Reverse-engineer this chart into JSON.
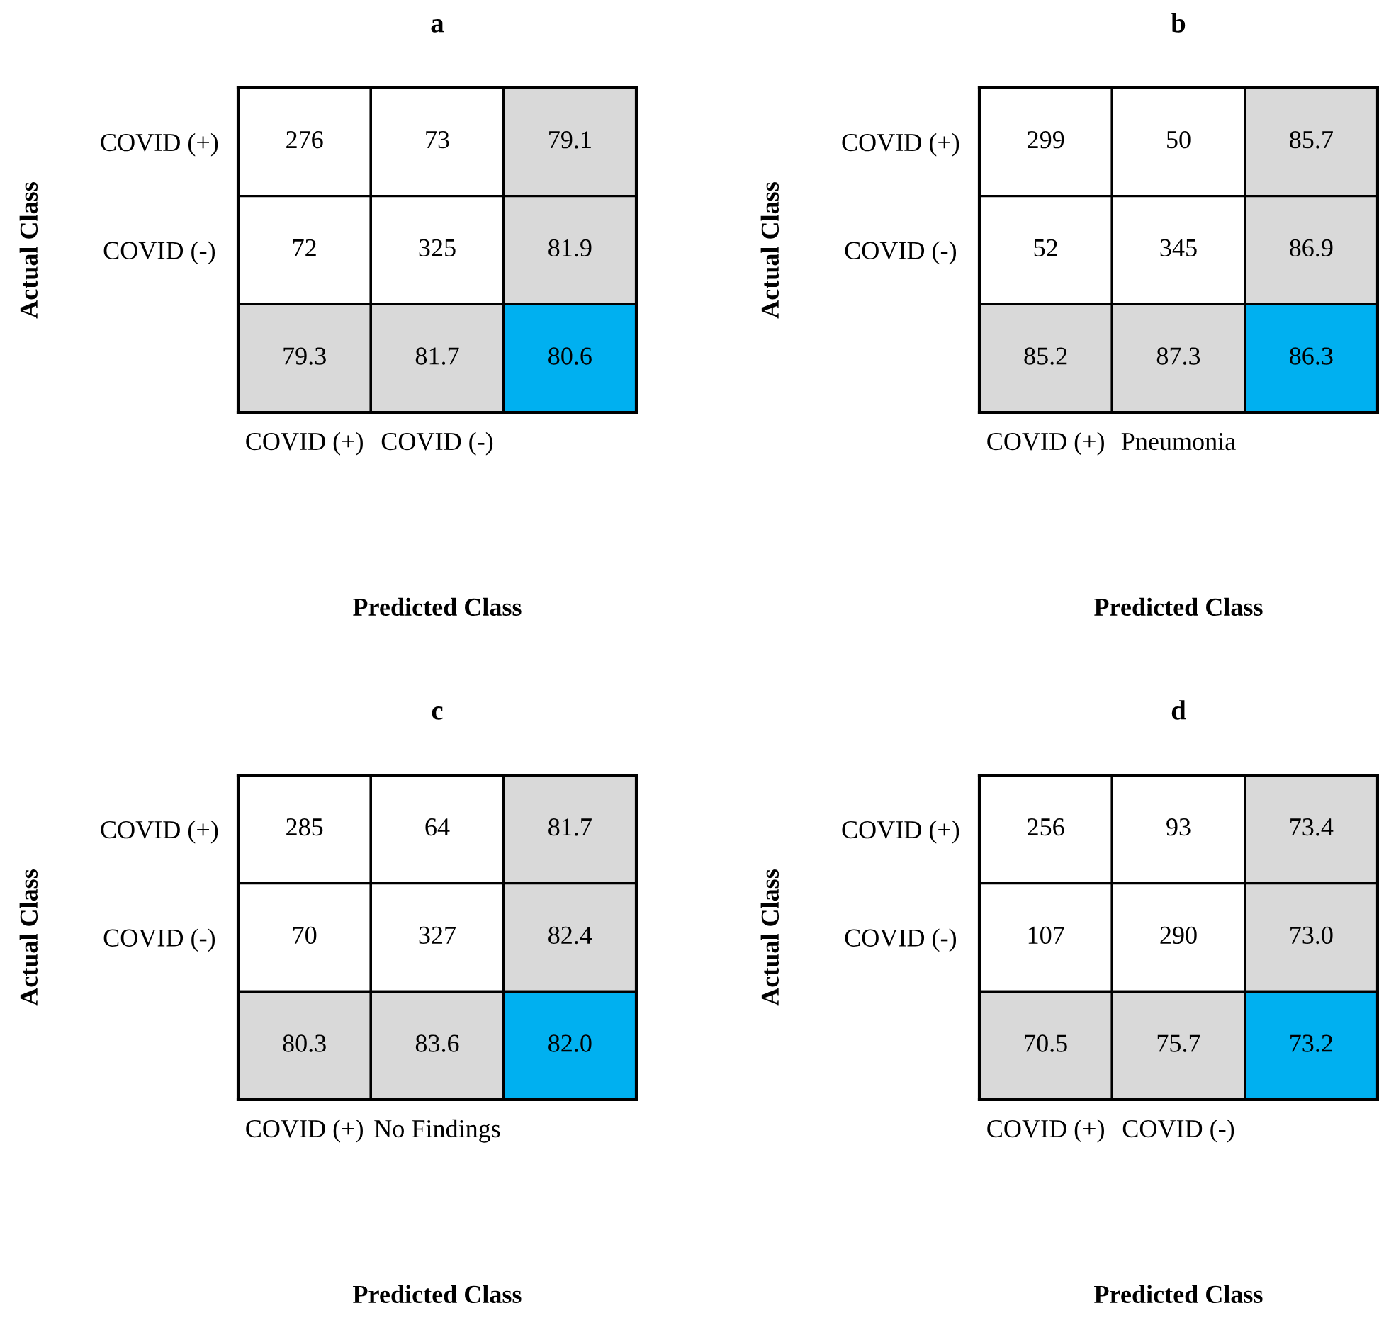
{
  "chart_data": [
    {
      "type": "heatmap",
      "title": "a",
      "xlabel": "Predicted Class",
      "ylabel": "Actual Class",
      "categories": [
        "COVID (+)",
        "COVID (-)",
        null
      ],
      "y_categories": [
        "COVID (+)",
        "COVID (-)",
        null
      ],
      "cells": [
        [
          276,
          73,
          79.1
        ],
        [
          72,
          325,
          81.9
        ],
        [
          79.3,
          81.7,
          80.6
        ]
      ],
      "data_labels": true
    },
    {
      "type": "heatmap",
      "title": "b",
      "xlabel": "Predicted Class",
      "ylabel": "Actual Class",
      "categories": [
        "COVID (+)",
        "Pneumonia",
        null
      ],
      "y_categories": [
        "COVID (+)",
        "COVID (-)",
        null
      ],
      "cells": [
        [
          299,
          50,
          85.7
        ],
        [
          52,
          345,
          86.9
        ],
        [
          85.2,
          87.3,
          86.3
        ]
      ],
      "data_labels": true
    },
    {
      "type": "heatmap",
      "title": "c",
      "xlabel": "Predicted Class",
      "ylabel": "Actual Class",
      "categories": [
        "COVID (+)",
        "No Findings",
        null
      ],
      "y_categories": [
        "COVID (+)",
        "COVID (-)",
        null
      ],
      "cells": [
        [
          285,
          64,
          81.7
        ],
        [
          70,
          327,
          82.4
        ],
        [
          80.3,
          83.6,
          82.0
        ]
      ],
      "cell_labels": [
        [
          "285",
          "64",
          "81.7"
        ],
        [
          "70",
          "327",
          "82.4"
        ],
        [
          "80.3",
          "83.6",
          "82.0"
        ]
      ],
      "data_labels": true
    },
    {
      "type": "heatmap",
      "title": "d",
      "xlabel": "Predicted Class",
      "ylabel": "Actual Class",
      "categories": [
        "COVID (+)",
        "COVID (-)",
        null
      ],
      "y_categories": [
        "COVID (+)",
        "COVID (-)",
        null
      ],
      "cells": [
        [
          256,
          93,
          73.4
        ],
        [
          107,
          290,
          73.0
        ],
        [
          70.5,
          75.7,
          73.2
        ]
      ],
      "cell_labels": [
        [
          "256",
          "93",
          "73.4"
        ],
        [
          "107",
          "290",
          "73.0"
        ],
        [
          "70.5",
          "75.7",
          "73.2"
        ]
      ],
      "data_labels": true
    }
  ]
}
